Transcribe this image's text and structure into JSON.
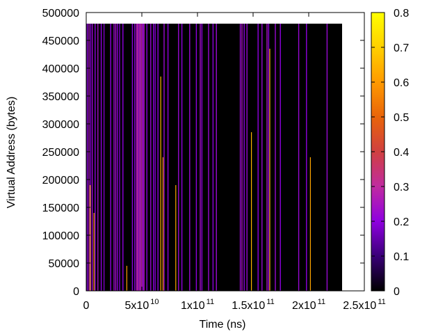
{
  "chart_data": {
    "type": "heatmap",
    "title": "",
    "xlabel": "Time (ns)",
    "ylabel": "Virtual Address (bytes)",
    "xlim": [
      0,
      250000000000
    ],
    "ylim": [
      0,
      500000
    ],
    "data_extent": {
      "x_max": 230000000000,
      "y_max": 480000
    },
    "background_value": 0,
    "x_ticks": [
      {
        "value": 0,
        "mantissa": "0",
        "exponent": ""
      },
      {
        "value": 50000000000,
        "mantissa": "5x10",
        "exponent": "10"
      },
      {
        "value": 100000000000,
        "mantissa": "1x10",
        "exponent": "11"
      },
      {
        "value": 150000000000,
        "mantissa": "1.5x10",
        "exponent": "11"
      },
      {
        "value": 200000000000,
        "mantissa": "2x10",
        "exponent": "11"
      },
      {
        "value": 250000000000,
        "mantissa": "2.5x10",
        "exponent": "11"
      }
    ],
    "y_ticks": [
      {
        "value": 0,
        "label": "0"
      },
      {
        "value": 50000,
        "label": "50000"
      },
      {
        "value": 100000,
        "label": "100000"
      },
      {
        "value": 150000,
        "label": "150000"
      },
      {
        "value": 200000,
        "label": "200000"
      },
      {
        "value": 250000,
        "label": "250000"
      },
      {
        "value": 300000,
        "label": "300000"
      },
      {
        "value": 350000,
        "label": "350000"
      },
      {
        "value": 400000,
        "label": "400000"
      },
      {
        "value": 450000,
        "label": "450000"
      },
      {
        "value": 500000,
        "label": "500000"
      }
    ],
    "colorbar": {
      "range": [
        0,
        0.8
      ],
      "ticks": [
        {
          "value": 0,
          "label": "0"
        },
        {
          "value": 0.1,
          "label": "0.1"
        },
        {
          "value": 0.2,
          "label": "0.2"
        },
        {
          "value": 0.3,
          "label": "0.3"
        },
        {
          "value": 0.4,
          "label": "0.4"
        },
        {
          "value": 0.5,
          "label": "0.5"
        },
        {
          "value": 0.6,
          "label": "0.6"
        },
        {
          "value": 0.7,
          "label": "0.7"
        },
        {
          "value": 0.8,
          "label": "0.8"
        }
      ],
      "palette": [
        "#000000",
        "#3a0078",
        "#8f00e0",
        "#c02ba0",
        "#d04040",
        "#e8640a",
        "#ff9a00",
        "#ffd000",
        "#ffff00"
      ]
    },
    "stripes": [
      {
        "x": 1000000000.0,
        "value": 0.2
      },
      {
        "x": 2500000000.0,
        "value": 0.25
      },
      {
        "x": 4000000000.0,
        "value": 0.18
      },
      {
        "x": 5500000000.0,
        "value": 0.22
      },
      {
        "x": 8000000000.0,
        "value": 0.2
      },
      {
        "x": 10500000000.0,
        "value": 0.24
      },
      {
        "x": 13500000000.0,
        "value": 0.2
      },
      {
        "x": 16000000000.0,
        "value": 0.18
      },
      {
        "x": 22000000000.0,
        "value": 0.2
      },
      {
        "x": 25000000000.0,
        "value": 0.22
      },
      {
        "x": 26500000000.0,
        "value": 0.25
      },
      {
        "x": 28000000000.0,
        "value": 0.2
      },
      {
        "x": 30000000000.0,
        "value": 0.18
      },
      {
        "x": 33000000000.0,
        "value": 0.2
      },
      {
        "x": 41500000000.0,
        "value": 0.2
      },
      {
        "x": 43500000000.0,
        "value": 0.18
      },
      {
        "x": 45000000000.0,
        "value": 0.24
      },
      {
        "x": 46000000000.0,
        "value": 0.3
      },
      {
        "x": 47000000000.0,
        "value": 0.22
      },
      {
        "x": 48000000000.0,
        "value": 0.28
      },
      {
        "x": 49000000000.0,
        "value": 0.25
      },
      {
        "x": 50000000000.0,
        "value": 0.3
      },
      {
        "x": 51000000000.0,
        "value": 0.2
      },
      {
        "x": 52000000000.0,
        "value": 0.26
      },
      {
        "x": 54500000000.0,
        "value": 0.2
      },
      {
        "x": 58000000000.0,
        "value": 0.22
      },
      {
        "x": 60500000000.0,
        "value": 0.2
      },
      {
        "x": 62000000000.0,
        "value": 0.18
      },
      {
        "x": 64500000000.0,
        "value": 0.2
      },
      {
        "x": 70000000000.0,
        "value": 0.22
      },
      {
        "x": 73500000000.0,
        "value": 0.2
      },
      {
        "x": 83000000000.0,
        "value": 0.22
      },
      {
        "x": 86000000000.0,
        "value": 0.2
      },
      {
        "x": 93000000000.0,
        "value": 0.22
      },
      {
        "x": 99000000000.0,
        "value": 0.2
      },
      {
        "x": 102500000000.0,
        "value": 0.24
      },
      {
        "x": 104000000000.0,
        "value": 0.2
      },
      {
        "x": 110000000000.0,
        "value": 0.22
      },
      {
        "x": 114000000000.0,
        "value": 0.2
      },
      {
        "x": 117000000000.0,
        "value": 0.22
      },
      {
        "x": 138500000000.0,
        "value": 0.22
      },
      {
        "x": 140000000000.0,
        "value": 0.25
      },
      {
        "x": 142000000000.0,
        "value": 0.2
      },
      {
        "x": 144500000000.0,
        "value": 0.22
      },
      {
        "x": 154500000000.0,
        "value": 0.2
      },
      {
        "x": 158000000000.0,
        "value": 0.22
      },
      {
        "x": 162500000000.0,
        "value": 0.25
      },
      {
        "x": 164000000000.0,
        "value": 0.2
      },
      {
        "x": 170000000000.0,
        "value": 0.22
      },
      {
        "x": 174500000000.0,
        "value": 0.2
      },
      {
        "x": 191000000000.0,
        "value": 0.22
      },
      {
        "x": 198000000000.0,
        "value": 0.2
      },
      {
        "x": 216500000000.0,
        "value": 0.22
      }
    ],
    "hot_lines": [
      {
        "x": 3500000000.0,
        "y_max": 190000,
        "value": 0.65
      },
      {
        "x": 7000000000.0,
        "y_max": 140000,
        "value": 0.62
      },
      {
        "x": 36500000000.0,
        "y_max": 45000,
        "value": 0.6
      },
      {
        "x": 67000000000.0,
        "y_max": 385000,
        "value": 0.65
      },
      {
        "x": 69000000000.0,
        "y_max": 240000,
        "value": 0.6
      },
      {
        "x": 80500000000.0,
        "y_max": 190000,
        "value": 0.62
      },
      {
        "x": 148500000000.0,
        "y_max": 285000,
        "value": 0.65
      },
      {
        "x": 165000000000.0,
        "y_max": 435000,
        "value": 0.65
      },
      {
        "x": 201500000000.0,
        "y_max": 240000,
        "value": 0.62
      }
    ]
  }
}
